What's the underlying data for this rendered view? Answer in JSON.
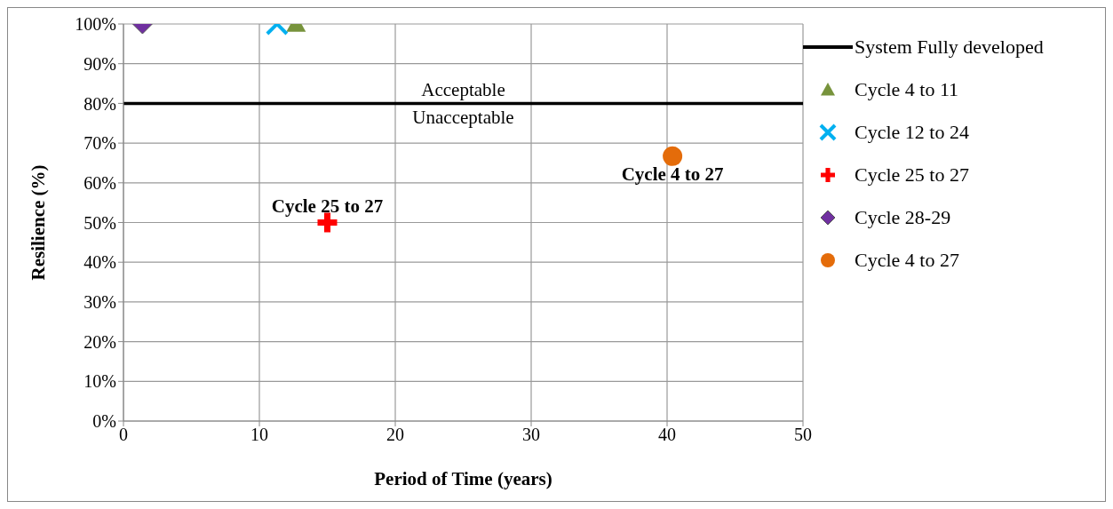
{
  "chart_data": {
    "type": "scatter",
    "xlabel": "Period of Time (years)",
    "ylabel": "Resilience (%)",
    "xlim": [
      0,
      50
    ],
    "xticks": [
      0,
      10,
      20,
      30,
      40,
      50
    ],
    "ylim": [
      0,
      100
    ],
    "yticks": [
      {
        "value": 0,
        "label": "0%"
      },
      {
        "value": 10,
        "label": "10%"
      },
      {
        "value": 20,
        "label": "20%"
      },
      {
        "value": 30,
        "label": "30%"
      },
      {
        "value": 40,
        "label": "40%"
      },
      {
        "value": 50,
        "label": "50%"
      },
      {
        "value": 60,
        "label": "60%"
      },
      {
        "value": 70,
        "label": "70%"
      },
      {
        "value": 80,
        "label": "80%"
      },
      {
        "value": 90,
        "label": "90%"
      },
      {
        "value": 100,
        "label": "100%"
      }
    ],
    "grid": true,
    "legend": "right",
    "series": [
      {
        "name": "System Fully developed",
        "type": "line",
        "color": "#000000",
        "x": [
          0,
          50
        ],
        "values": [
          80,
          80
        ],
        "marker": "none"
      },
      {
        "name": "Cycle 4 to 11",
        "color": "#77933c",
        "x": [
          12.7
        ],
        "values": [
          100
        ],
        "marker": "triangle"
      },
      {
        "name": "Cycle 12 to 24",
        "color": "#00b0f0",
        "x": [
          11.3
        ],
        "values": [
          100
        ],
        "marker": "cross"
      },
      {
        "name": "Cycle 25 to 27",
        "color": "#ff0000",
        "x": [
          15
        ],
        "values": [
          50
        ],
        "marker": "cross"
      },
      {
        "name": "Cycle 28-29",
        "color": "#7030a0",
        "x": [
          1.4
        ],
        "values": [
          100
        ],
        "marker": "diamond"
      },
      {
        "name": "Cycle 4 to 27",
        "color": "#e46c0a",
        "x": [
          40.4
        ],
        "values": [
          66.7
        ],
        "marker": "circle"
      }
    ],
    "annotations": [
      {
        "text": "Acceptable",
        "x": 25,
        "y": 80
      },
      {
        "text": "Unacceptable",
        "x": 25,
        "y": 80
      },
      {
        "text": "Cycle 25 to 27",
        "x": 15,
        "y": 50
      },
      {
        "text": "Cycle 4 to 27",
        "x": 40.4,
        "y": 66.7
      }
    ]
  }
}
